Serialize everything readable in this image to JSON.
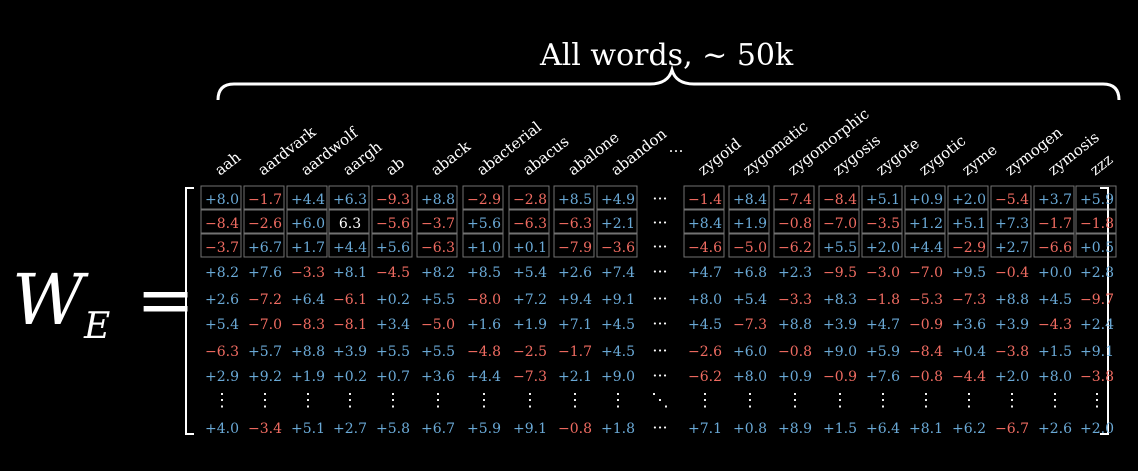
{
  "title": "All words,  ~ 50k",
  "lhs_symbol": "W",
  "lhs_subscript": "E",
  "equals": "=",
  "ellipsis_h": "···",
  "ellipsis_v": "⋮",
  "ellipsis_d": "⋱",
  "columns": [
    "aah",
    "aardvark",
    "aardwolf",
    "aargh",
    "ab",
    "aback",
    "abacterial",
    "abacus",
    "abalone",
    "abandon",
    "…",
    "zygoid",
    "zygomatic",
    "zygomorphic",
    "zygosis",
    "zygote",
    "zygotic",
    "zyme",
    "zymogen",
    "zymosis",
    "zzz"
  ],
  "rows": [
    [
      "+8.0",
      "−1.7",
      "+4.4",
      "+6.3",
      "−9.3",
      "+8.8",
      "−2.9",
      "−2.8",
      "+8.5",
      "+4.9",
      "···",
      "−1.4",
      "+8.4",
      "−7.4",
      "−8.4",
      "+5.1",
      "+0.9",
      "+2.0",
      "−5.4",
      "+3.7",
      "+5.9"
    ],
    [
      "−8.4",
      "−2.6",
      "+6.0",
      "6.3",
      "−5.6",
      "−3.7",
      "+5.6",
      "−6.3",
      "−6.3",
      "+2.1",
      "···",
      "+8.4",
      "+1.9",
      "−0.8",
      "−7.0",
      "−3.5",
      "+1.2",
      "+5.1",
      "+7.3",
      "−1.7",
      "−1.8"
    ],
    [
      "−3.7",
      "+6.7",
      "+1.7",
      "+4.4",
      "+5.6",
      "−6.3",
      "+1.0",
      "+0.1",
      "−7.9",
      "−3.6",
      "···",
      "−4.6",
      "−5.0",
      "−6.2",
      "+5.5",
      "+2.0",
      "+4.4",
      "−2.9",
      "+2.7",
      "−6.6",
      "+0.5"
    ],
    [
      "+8.2",
      "+7.6",
      "−3.3",
      "+8.1",
      "−4.5",
      "+8.2",
      "+8.5",
      "+5.4",
      "+2.6",
      "+7.4",
      "···",
      "+4.7",
      "+6.8",
      "+2.3",
      "−9.5",
      "−3.0",
      "−7.0",
      "+9.5",
      "−0.4",
      "+0.0",
      "+2.8"
    ],
    [
      "+2.6",
      "−7.2",
      "+6.4",
      "−6.1",
      "+0.2",
      "+5.5",
      "−8.0",
      "+7.2",
      "+9.4",
      "+9.1",
      "···",
      "+8.0",
      "+5.4",
      "−3.3",
      "+8.3",
      "−1.8",
      "−5.3",
      "−7.3",
      "+8.8",
      "+4.5",
      "−9.7"
    ],
    [
      "+5.4",
      "−7.0",
      "−8.3",
      "−8.1",
      "+3.4",
      "−5.0",
      "+1.6",
      "+1.9",
      "+7.1",
      "+4.5",
      "···",
      "+4.5",
      "−7.3",
      "+8.8",
      "+3.9",
      "+4.7",
      "−0.9",
      "+3.6",
      "+3.9",
      "−4.3",
      "+2.4"
    ],
    [
      "−6.3",
      "+5.7",
      "+8.8",
      "+3.9",
      "+5.5",
      "+5.5",
      "−4.8",
      "−2.5",
      "−1.7",
      "+4.5",
      "···",
      "−2.6",
      "+6.0",
      "−0.8",
      "+9.0",
      "+5.9",
      "−8.4",
      "+0.4",
      "−3.8",
      "+1.5",
      "+9.1"
    ],
    [
      "+2.9",
      "+9.2",
      "+1.9",
      "+0.2",
      "+0.7",
      "+3.6",
      "+4.4",
      "−7.3",
      "+2.1",
      "+9.0",
      "···",
      "−6.2",
      "+8.0",
      "+0.9",
      "−0.9",
      "+7.6",
      "−0.8",
      "−4.4",
      "+2.0",
      "+8.0",
      "−3.8"
    ],
    [
      "⋮",
      "⋮",
      "⋮",
      "⋮",
      "⋮",
      "⋮",
      "⋮",
      "⋮",
      "⋮",
      "⋮",
      "⋱",
      "⋮",
      "⋮",
      "⋮",
      "⋮",
      "⋮",
      "⋮",
      "⋮",
      "⋮",
      "⋮",
      "⋮"
    ],
    [
      "+4.0",
      "−3.4",
      "+5.1",
      "+2.7",
      "+5.8",
      "+6.7",
      "+5.9",
      "+9.1",
      "−0.8",
      "+1.8",
      "···",
      "+7.1",
      "+0.8",
      "+8.9",
      "+1.5",
      "+6.4",
      "+8.1",
      "+6.2",
      "−6.7",
      "+2.6",
      "+2.0"
    ]
  ],
  "colors": {
    "positive": "#6aa9d6",
    "negative": "#ef6b61",
    "text": "#ffffff",
    "box": "#cfcfcf"
  }
}
